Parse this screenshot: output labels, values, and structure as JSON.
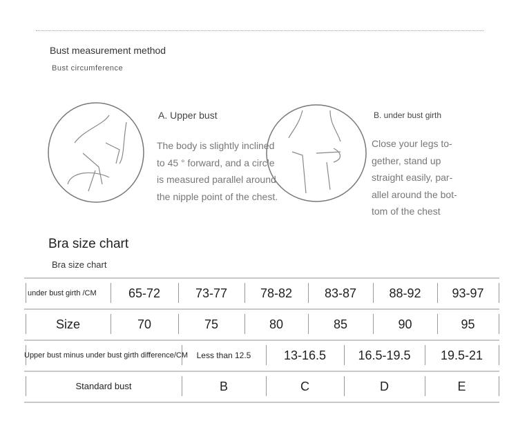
{
  "method": {
    "heading": "Bust measurement method",
    "subheading": "Bust circumference",
    "a": {
      "caption": "A. Upper bust",
      "lines": [
        "The body is slightly inclined",
        "to 45 ° forward, and a circle",
        "is measured parallel around",
        "the nipple point of the chest."
      ]
    },
    "b": {
      "caption": "B. under bust girth",
      "lines": [
        "Close your legs to-",
        "gether, stand up",
        "straight easily, par-",
        "allel around the bot-",
        "tom of the chest"
      ]
    }
  },
  "chart": {
    "title": "Bra size chart",
    "subtitle": "Bra size chart",
    "rows": [
      {
        "label": "under bust girth /CM",
        "values": [
          "65-72",
          "73-77",
          "78-82",
          "83-87",
          "88-92",
          "93-97"
        ]
      },
      {
        "label": "Size",
        "values": [
          "70",
          "75",
          "80",
          "85",
          "90",
          "95"
        ]
      },
      {
        "label": "Upper bust minus under bust girth difference/CM",
        "values": [
          "Less than 12.5",
          "13-16.5",
          "16.5-19.5",
          "19.5-21"
        ]
      },
      {
        "label": "Standard bust",
        "values": [
          "B",
          "C",
          "D",
          "E"
        ]
      }
    ]
  }
}
